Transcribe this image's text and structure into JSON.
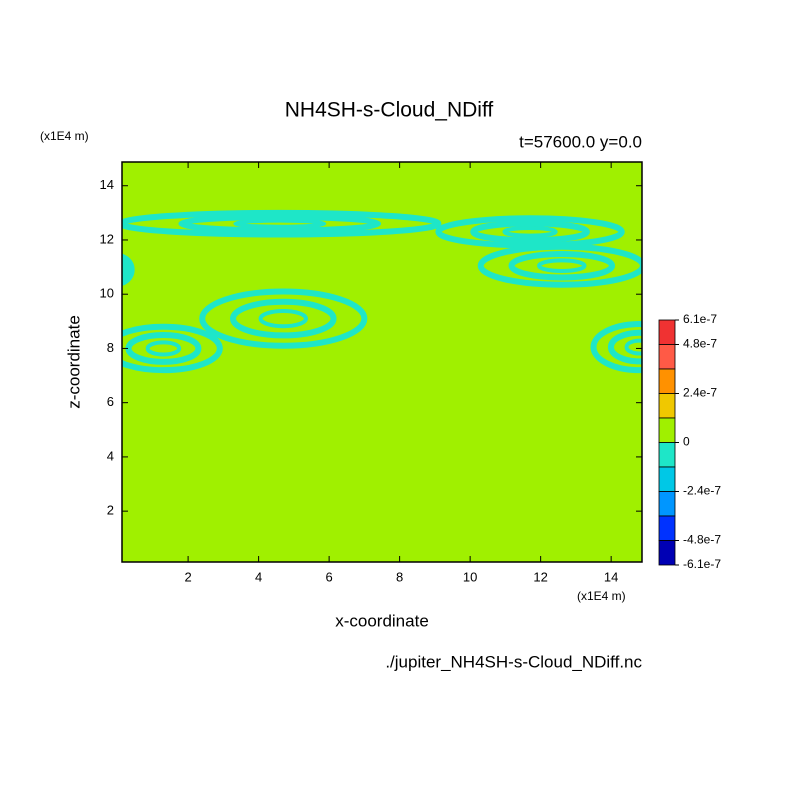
{
  "chart_data": {
    "type": "contour",
    "title": "NH4SH-s-Cloud_NDiff",
    "subtitle": "t=57600.0 y=0.0",
    "x_label": "x-coordinate",
    "y_label": "z-coordinate",
    "x_unit": "(x1E4 m)",
    "y_unit": "(x1E4 m)",
    "source": "./jupiter_NH4SH-s-Cloud_NDiff.nc",
    "xlim": [
      0.125,
      14.875
    ],
    "ylim": [
      0.125,
      14.875
    ],
    "xticks": [
      2,
      4,
      6,
      8,
      10,
      12,
      14
    ],
    "yticks": [
      2,
      4,
      6,
      8,
      10,
      12,
      14
    ],
    "background_value": 6e-08,
    "regions": [
      {
        "value": -6e-08,
        "cx": 4.6,
        "cz": 12.6,
        "rx": 4.5,
        "rz": 0.4
      },
      {
        "value": -6e-08,
        "cx": 11.7,
        "cz": 12.3,
        "rx": 2.6,
        "rz": 0.5
      },
      {
        "value": -6e-08,
        "cx": 12.6,
        "cz": 11.05,
        "rx": 2.3,
        "rz": 0.7
      },
      {
        "value": -6e-08,
        "cx": 4.7,
        "cz": 9.1,
        "rx": 2.3,
        "rz": 1.0
      },
      {
        "value": -6e-08,
        "cx": 1.3,
        "cz": 8.0,
        "rx": 1.6,
        "rz": 0.8
      },
      {
        "value": -6e-08,
        "cx": 14.8,
        "cz": 8.05,
        "rx": 1.3,
        "rz": 0.85
      },
      {
        "value": -6e-08,
        "cx": 0.0,
        "cz": 10.9,
        "rx": 0.4,
        "rz": 0.5
      }
    ],
    "colorbar": {
      "levels": [
        6.1e-07,
        4.8e-07,
        3.6e-07,
        2.4e-07,
        1.2e-07,
        0,
        -1.2e-07,
        -2.4e-07,
        -3.6e-07,
        -4.8e-07,
        -6.1e-07
      ],
      "colors": [
        "#f03232",
        "#ff5a46",
        "#ff9100",
        "#f0c800",
        "#a0f000",
        "#1ee6c8",
        "#00c8e6",
        "#0096ff",
        "#0032ff",
        "#0000b4"
      ],
      "ticks": [
        {
          "value": 6.1e-07,
          "label": "6.1e-7"
        },
        {
          "value": 4.8e-07,
          "label": "4.8e-7"
        },
        {
          "value": 2.4e-07,
          "label": "2.4e-7"
        },
        0,
        {
          "value": -2.4e-07,
          "label": "-2.4e-7"
        },
        {
          "value": -4.8e-07,
          "label": "-4.8e-7"
        },
        {
          "value": -6.1e-07,
          "label": "-6.1e-7"
        }
      ]
    }
  }
}
